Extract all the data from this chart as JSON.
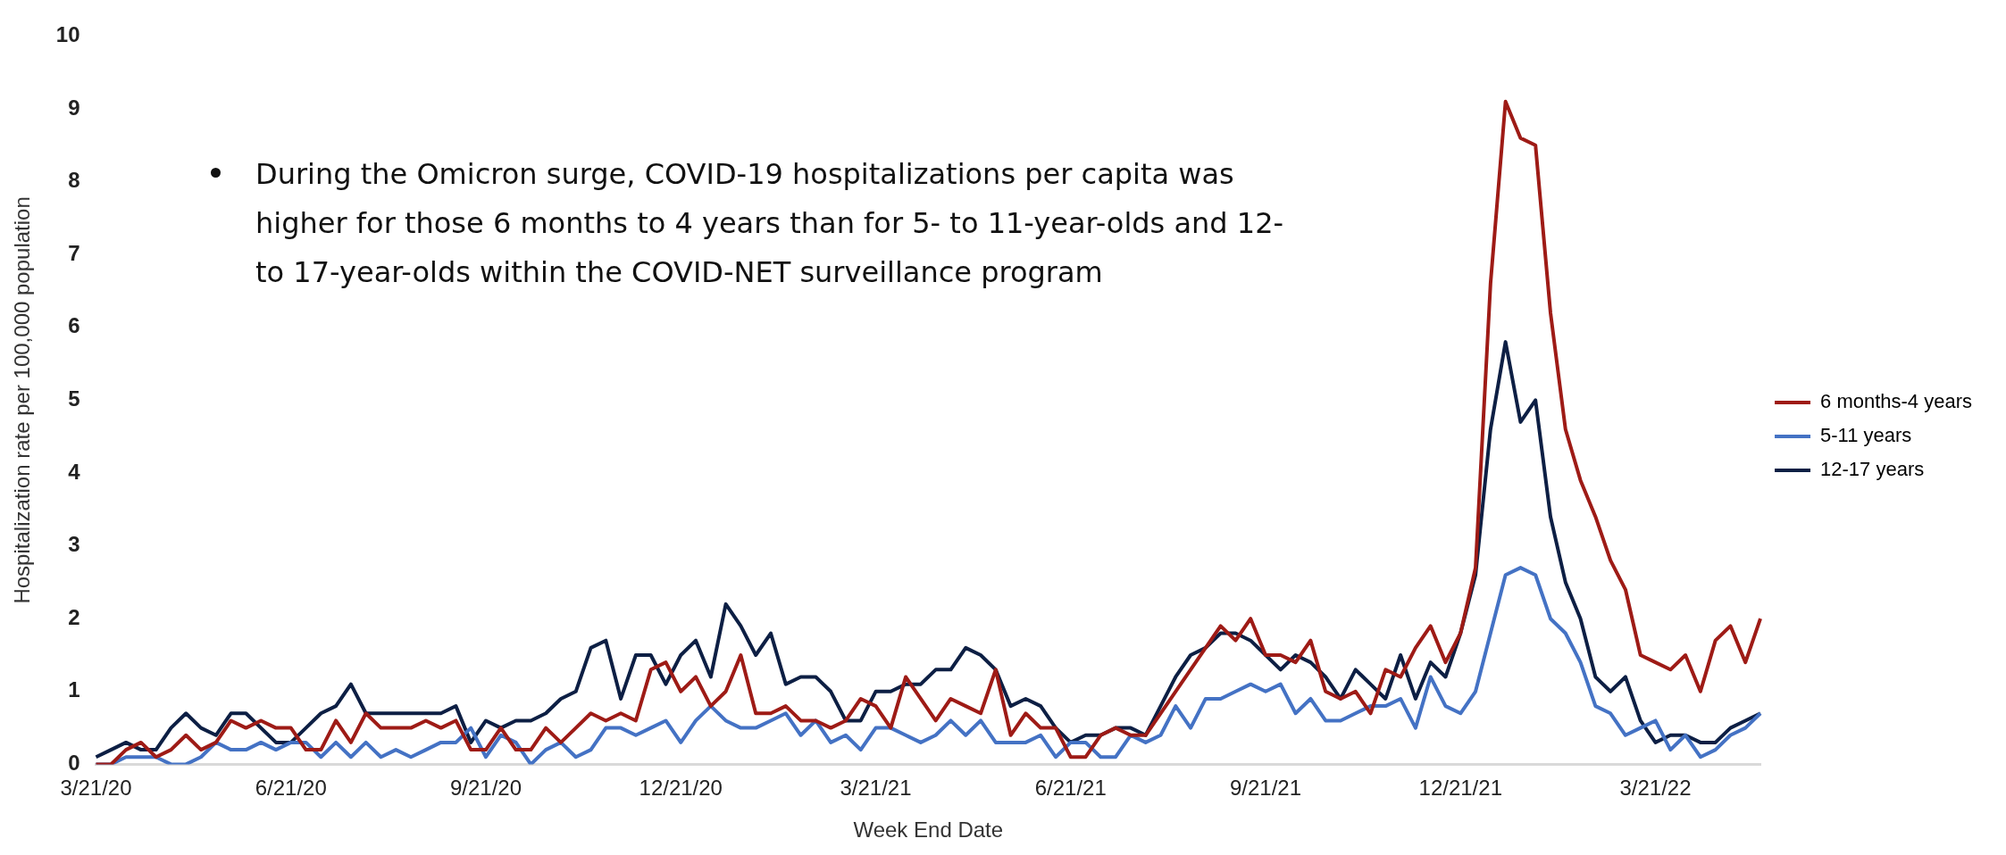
{
  "chart_data": {
    "type": "line",
    "xlabel": "Week End Date",
    "ylabel": "Hospitalization rate per 100,000 population",
    "categories": [
      "3/21/20",
      null,
      null,
      null,
      null,
      null,
      null,
      null,
      null,
      null,
      null,
      null,
      null,
      "6/21/20",
      null,
      null,
      null,
      null,
      null,
      null,
      null,
      null,
      null,
      null,
      null,
      null,
      "9/21/20",
      null,
      null,
      null,
      null,
      null,
      null,
      null,
      null,
      null,
      null,
      null,
      null,
      "12/21/20",
      null,
      null,
      null,
      null,
      null,
      null,
      null,
      null,
      null,
      null,
      null,
      null,
      "3/21/21",
      null,
      null,
      null,
      null,
      null,
      null,
      null,
      null,
      null,
      null,
      null,
      null,
      "6/21/21",
      null,
      null,
      null,
      null,
      null,
      null,
      null,
      null,
      null,
      null,
      null,
      null,
      "9/21/21",
      null,
      null,
      null,
      null,
      null,
      null,
      null,
      null,
      null,
      null,
      null,
      null,
      "12/21/21",
      null,
      null,
      null,
      null,
      null,
      null,
      null,
      null,
      null,
      null,
      null,
      null,
      "3/21/22",
      null,
      null,
      null,
      null,
      null,
      null,
      null
    ],
    "series": [
      {
        "name": "6 months-4 years",
        "color": "#9e1b16",
        "values": [
          0,
          0,
          0.2,
          0.3,
          0.1,
          0.2,
          0.4,
          0.2,
          0.3,
          0.6,
          0.5,
          0.6,
          0.5,
          0.5,
          0.2,
          0.2,
          0.6,
          0.3,
          0.7,
          0.5,
          0.5,
          0.5,
          0.6,
          0.5,
          0.6,
          0.2,
          0.2,
          0.5,
          0.2,
          0.2,
          0.5,
          0.3,
          0.5,
          0.7,
          0.6,
          0.7,
          0.6,
          1.3,
          1.4,
          1.0,
          1.2,
          0.8,
          1.0,
          1.5,
          0.7,
          0.7,
          0.8,
          0.6,
          0.6,
          0.5,
          0.6,
          0.9,
          0.8,
          0.5,
          1.2,
          0.9,
          0.6,
          0.9,
          0.8,
          0.7,
          1.3,
          0.4,
          0.7,
          0.5,
          0.5,
          0.1,
          0.1,
          0.4,
          0.5,
          0.4,
          0.4,
          0.7,
          1.0,
          1.3,
          1.6,
          1.9,
          1.7,
          2.0,
          1.5,
          1.5,
          1.4,
          1.7,
          1.0,
          0.9,
          1.0,
          0.7,
          1.3,
          1.2,
          1.6,
          1.9,
          1.4,
          1.8,
          2.7,
          6.6,
          9.1,
          8.6,
          8.5,
          6.2,
          4.6,
          3.9,
          3.4,
          2.8,
          2.4,
          1.5,
          1.4,
          1.3,
          1.5,
          1.0,
          1.7,
          1.9,
          1.4,
          2.0
        ]
      },
      {
        "name": "5-11 years",
        "color": "#4472c4",
        "values": [
          0,
          0,
          0.1,
          0.1,
          0.1,
          0,
          0,
          0.1,
          0.3,
          0.2,
          0.2,
          0.3,
          0.2,
          0.3,
          0.3,
          0.1,
          0.3,
          0.1,
          0.3,
          0.1,
          0.2,
          0.1,
          0.2,
          0.3,
          0.3,
          0.5,
          0.1,
          0.4,
          0.3,
          0,
          0.2,
          0.3,
          0.1,
          0.2,
          0.5,
          0.5,
          0.4,
          0.5,
          0.6,
          0.3,
          0.6,
          0.8,
          0.6,
          0.5,
          0.5,
          0.6,
          0.7,
          0.4,
          0.6,
          0.3,
          0.4,
          0.2,
          0.5,
          0.5,
          0.4,
          0.3,
          0.4,
          0.6,
          0.4,
          0.6,
          0.3,
          0.3,
          0.3,
          0.4,
          0.1,
          0.3,
          0.3,
          0.1,
          0.1,
          0.4,
          0.3,
          0.4,
          0.8,
          0.5,
          0.9,
          0.9,
          1.0,
          1.1,
          1.0,
          1.1,
          0.7,
          0.9,
          0.6,
          0.6,
          0.7,
          0.8,
          0.8,
          0.9,
          0.5,
          1.2,
          0.8,
          0.7,
          1.0,
          1.8,
          2.6,
          2.7,
          2.6,
          2.0,
          1.8,
          1.4,
          0.8,
          0.7,
          0.4,
          0.5,
          0.6,
          0.2,
          0.4,
          0.1,
          0.2,
          0.4,
          0.5,
          0.7
        ]
      },
      {
        "name": "12-17 years",
        "color": "#0d1f44",
        "values": [
          0.1,
          0.2,
          0.3,
          0.2,
          0.2,
          0.5,
          0.7,
          0.5,
          0.4,
          0.7,
          0.7,
          0.5,
          0.3,
          0.3,
          0.5,
          0.7,
          0.8,
          1.1,
          0.7,
          0.7,
          0.7,
          0.7,
          0.7,
          0.7,
          0.8,
          0.3,
          0.6,
          0.5,
          0.6,
          0.6,
          0.7,
          0.9,
          1.0,
          1.6,
          1.7,
          0.9,
          1.5,
          1.5,
          1.1,
          1.5,
          1.7,
          1.2,
          2.2,
          1.9,
          1.5,
          1.8,
          1.1,
          1.2,
          1.2,
          1.0,
          0.6,
          0.6,
          1.0,
          1.0,
          1.1,
          1.1,
          1.3,
          1.3,
          1.6,
          1.5,
          1.3,
          0.8,
          0.9,
          0.8,
          0.5,
          0.3,
          0.4,
          0.4,
          0.5,
          0.5,
          0.4,
          0.8,
          1.2,
          1.5,
          1.6,
          1.8,
          1.8,
          1.7,
          1.5,
          1.3,
          1.5,
          1.4,
          1.2,
          0.9,
          1.3,
          1.1,
          0.9,
          1.5,
          0.9,
          1.4,
          1.2,
          1.8,
          2.6,
          4.6,
          5.8,
          4.7,
          5.0,
          3.4,
          2.5,
          2.0,
          1.2,
          1.0,
          1.2,
          0.6,
          0.3,
          0.4,
          0.4,
          0.3,
          0.3,
          0.5,
          0.6,
          0.7
        ]
      }
    ],
    "ylim": [
      0,
      10
    ],
    "yticks": [
      0,
      1,
      2,
      3,
      4,
      5,
      6,
      7,
      8,
      9,
      10
    ],
    "marker": "none",
    "legend": "right",
    "annotations": [
      "During the Omicron surge, COVID-19 hospitalizations per capita was higher for those 6 months to 4 years than for 5- to 11-year-olds and 12- to 17-year-olds within the COVID-NET surveillance program"
    ]
  }
}
